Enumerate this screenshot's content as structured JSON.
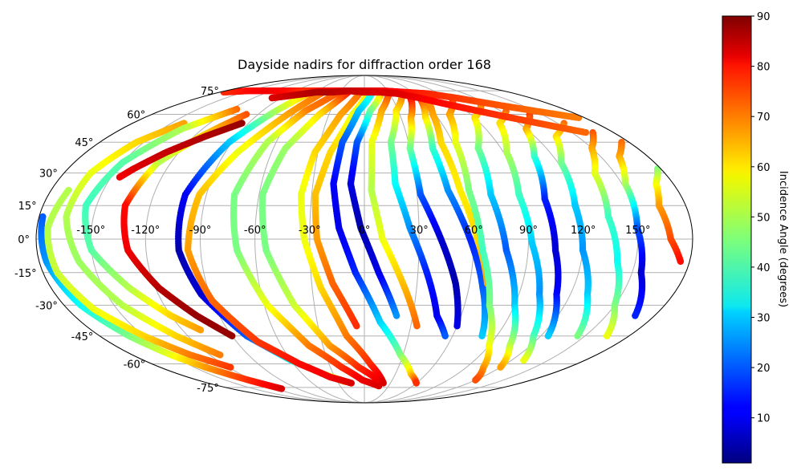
{
  "title": "Dayside nadirs for diffraction order 168",
  "map": {
    "projection": "mollweide",
    "lon_ticks": [
      "-150°",
      "-120°",
      "-90°",
      "-60°",
      "-30°",
      "0°",
      "30°",
      "60°",
      "90°",
      "120°",
      "150°"
    ],
    "lat_ticks": [
      "75°",
      "60°",
      "45°",
      "30°",
      "15°",
      "0°",
      "-15°",
      "-30°",
      "-45°",
      "-60°",
      "-75°"
    ],
    "lon_tick_values": [
      -150,
      -120,
      -90,
      -60,
      -30,
      0,
      30,
      60,
      90,
      120,
      150
    ],
    "lat_tick_values": [
      75,
      60,
      45,
      30,
      15,
      0,
      -15,
      -30,
      -45,
      -60,
      -75
    ],
    "grid": true
  },
  "colorbar": {
    "label": "Incidence Angle (degrees)",
    "colormap": "jet",
    "range": [
      1,
      90
    ],
    "ticks": [
      "10",
      "20",
      "30",
      "40",
      "50",
      "60",
      "70",
      "80",
      "90"
    ],
    "tick_values": [
      10,
      20,
      30,
      40,
      50,
      60,
      70,
      80,
      90
    ]
  },
  "chart_data": {
    "type": "scatter",
    "title": "Dayside nadirs for diffraction order 168",
    "xlabel": "",
    "ylabel": "",
    "color_label": "Incidence Angle (degrees)",
    "color_range": [
      1,
      90
    ],
    "tracks": [
      {
        "lon": [
          -178,
          -176,
          -170,
          -160,
          -150,
          -140,
          -125,
          -112
        ],
        "lat": [
          10,
          -10,
          -30,
          -45,
          -55,
          -62,
          -70,
          -76
        ],
        "inc": [
          20,
          25,
          35,
          45,
          55,
          65,
          75,
          82
        ]
      },
      {
        "lon": [
          -170,
          -174,
          -172,
          -164,
          -150,
          -135,
          -118
        ],
        "lat": [
          22,
          5,
          -15,
          -32,
          -45,
          -55,
          -62
        ],
        "inc": [
          50,
          50,
          52,
          55,
          60,
          68,
          74
        ]
      },
      {
        "lon": [
          -140,
          -155,
          -164,
          -165,
          -158,
          -145,
          -128,
          -112
        ],
        "lat": [
          55,
          45,
          30,
          10,
          -10,
          -30,
          -45,
          -55
        ],
        "inc": [
          65,
          60,
          55,
          50,
          48,
          50,
          60,
          68
        ]
      },
      {
        "lon": [
          -115,
          -135,
          -150,
          -156,
          -150,
          -135,
          -120,
          -108
        ],
        "lat": [
          63,
          52,
          35,
          15,
          -5,
          -22,
          -35,
          -42
        ],
        "inc": [
          70,
          50,
          42,
          40,
          42,
          50,
          60,
          65
        ]
      },
      {
        "lon": [
          -100,
          -115,
          -128,
          -134,
          -130,
          -118,
          -104,
          -90
        ],
        "lat": [
          60,
          48,
          35,
          15,
          -5,
          -22,
          -35,
          -45
        ],
        "inc": [
          72,
          60,
          50,
          78,
          80,
          85,
          88,
          88
        ]
      },
      {
        "lon": [
          -95,
          -112,
          -128,
          -140,
          -145
        ],
        "lat": [
          55,
          48,
          40,
          32,
          28
        ],
        "inc": [
          88,
          86,
          84,
          82,
          80
        ]
      },
      {
        "lon": [
          -65,
          -78,
          -92,
          -102,
          -102,
          -95,
          -80,
          -60,
          -40,
          -22
        ],
        "lat": [
          75,
          62,
          45,
          20,
          -5,
          -25,
          -45,
          -58,
          -66,
          -71
        ],
        "inc": [
          65,
          50,
          30,
          12,
          5,
          8,
          20,
          35,
          50,
          62
        ]
      },
      {
        "lon": [
          -50,
          -65,
          -82,
          -94,
          -97,
          -90,
          -75,
          -55,
          -35,
          -15
        ],
        "lat": [
          75,
          60,
          40,
          20,
          -5,
          -28,
          -48,
          -60,
          -68,
          -72
        ],
        "inc": [
          70,
          65,
          55,
          62,
          65,
          70,
          74,
          78,
          80,
          82
        ]
      },
      {
        "lon": [
          -30,
          -52,
          -66,
          -74,
          -70,
          -58,
          -40,
          -20,
          -2,
          18
        ],
        "lat": [
          75,
          62,
          45,
          20,
          -5,
          -30,
          -50,
          -62,
          -70,
          -74
        ],
        "inc": [
          72,
          68,
          50,
          45,
          45,
          55,
          68,
          75,
          80,
          82
        ]
      },
      {
        "lon": [
          -20,
          -38,
          -52,
          -58,
          -54,
          -42,
          -25,
          -5,
          15
        ],
        "lat": [
          74,
          60,
          42,
          20,
          -5,
          -30,
          -50,
          -62,
          -70
        ],
        "inc": [
          78,
          60,
          48,
          45,
          45,
          52,
          65,
          75,
          80
        ]
      },
      {
        "lon": [
          -5,
          -20,
          -32,
          -36,
          -33,
          -25,
          -12,
          5,
          22
        ],
        "lat": [
          74,
          60,
          40,
          20,
          0,
          -22,
          -45,
          -60,
          -72
        ],
        "inc": [
          70,
          65,
          60,
          55,
          55,
          60,
          68,
          75,
          82
        ]
      },
      {
        "lon": [
          5,
          -10,
          -22,
          -28,
          -26,
          -18,
          -5
        ],
        "lat": [
          74,
          60,
          40,
          20,
          0,
          -20,
          -40
        ],
        "inc": [
          60,
          55,
          60,
          62,
          65,
          70,
          75
        ]
      },
      {
        "lon": [
          10,
          -5,
          -15,
          -18,
          -14,
          -5,
          10,
          28,
          45,
          60
        ],
        "lat": [
          74,
          62,
          45,
          25,
          5,
          -15,
          -38,
          -55,
          -66,
          -72
        ],
        "inc": [
          40,
          30,
          20,
          12,
          10,
          15,
          30,
          45,
          60,
          75
        ]
      },
      {
        "lon": [
          20,
          5,
          -5,
          -8,
          -2,
          8,
          20
        ],
        "lat": [
          73,
          62,
          45,
          25,
          5,
          -15,
          -35
        ],
        "inc": [
          65,
          45,
          20,
          10,
          5,
          10,
          25
        ]
      },
      {
        "lon": [
          30,
          15,
          5,
          4,
          10,
          22,
          34
        ],
        "lat": [
          74,
          62,
          45,
          22,
          0,
          -20,
          -40
        ],
        "inc": [
          75,
          65,
          55,
          50,
          55,
          62,
          70
        ]
      },
      {
        "lon": [
          45,
          28,
          18,
          18,
          25,
          35,
          45,
          55
        ],
        "lat": [
          73,
          62,
          45,
          25,
          5,
          -15,
          -35,
          -45
        ],
        "inc": [
          72,
          60,
          45,
          35,
          25,
          15,
          10,
          20
        ]
      },
      {
        "lon": [
          50,
          38,
          30,
          32,
          42,
          52,
          60
        ],
        "lat": [
          70,
          58,
          42,
          20,
          0,
          -20,
          -40
        ],
        "inc": [
          80,
          65,
          45,
          20,
          8,
          5,
          10
        ]
      },
      {
        "lon": [
          60,
          50,
          45,
          48,
          58,
          68,
          80
        ],
        "lat": [
          70,
          58,
          42,
          22,
          0,
          -22,
          -45
        ],
        "inc": [
          75,
          60,
          40,
          25,
          15,
          20,
          30
        ]
      },
      {
        "lon": [
          68,
          58,
          52,
          55,
          62,
          70
        ],
        "lat": [
          72,
          60,
          45,
          22,
          0,
          -20
        ],
        "inc": [
          70,
          65,
          60,
          58,
          60,
          65
        ]
      },
      {
        "lon": [
          90,
          72,
          62,
          60,
          65,
          75,
          90,
          105,
          120
        ],
        "lat": [
          68,
          60,
          45,
          22,
          -5,
          -30,
          -50,
          -62,
          -70
        ],
        "inc": [
          75,
          65,
          55,
          45,
          40,
          45,
          55,
          65,
          72
        ]
      },
      {
        "lon": [
          110,
          90,
          75,
          72,
          78,
          90,
          105,
          120
        ],
        "lat": [
          65,
          58,
          42,
          20,
          -5,
          -30,
          -50,
          -62
        ],
        "inc": [
          70,
          60,
          45,
          30,
          20,
          30,
          50,
          65
        ]
      },
      {
        "lon": [
          125,
          105,
          92,
          88,
          92,
          102,
          115,
          130
        ],
        "lat": [
          62,
          55,
          40,
          20,
          -2,
          -25,
          -45,
          -58
        ],
        "inc": [
          72,
          60,
          50,
          40,
          30,
          25,
          40,
          55
        ]
      },
      {
        "lon": [
          140,
          120,
          108,
          102,
          105,
          112,
          125
        ],
        "lat": [
          60,
          52,
          38,
          18,
          -5,
          -25,
          -45
        ],
        "inc": [
          75,
          65,
          40,
          15,
          8,
          12,
          30
        ]
      },
      {
        "lon": [
          155,
          135,
          122,
          118,
          120,
          130,
          145
        ],
        "lat": [
          55,
          48,
          35,
          15,
          -5,
          -25,
          -45
        ],
        "inc": [
          70,
          60,
          45,
          30,
          25,
          30,
          45
        ]
      },
      {
        "lon": [
          165,
          150,
          138,
          135,
          140,
          150,
          165
        ],
        "lat": [
          50,
          42,
          30,
          10,
          -10,
          -30,
          -45
        ],
        "inc": [
          72,
          65,
          55,
          40,
          35,
          45,
          55
        ]
      },
      {
        "lon": [
          175,
          162,
          152,
          150,
          155,
          168
        ],
        "lat": [
          45,
          38,
          25,
          5,
          -15,
          -35
        ],
        "inc": [
          70,
          65,
          50,
          20,
          8,
          15
        ]
      },
      {
        "lon": [
          178,
          170,
          165,
          168,
          175
        ],
        "lat": [
          32,
          25,
          15,
          0,
          -10
        ],
        "inc": [
          45,
          55,
          65,
          72,
          78
        ]
      },
      {
        "lon": [
          -175,
          -150,
          -125,
          -100,
          -75,
          -50,
          -25,
          0,
          25,
          50,
          75,
          100,
          125,
          150,
          175
        ],
        "lat": [
          74,
          75,
          75,
          75,
          75,
          75,
          75,
          75,
          75,
          74,
          73,
          70,
          66,
          62,
          58
        ],
        "inc": [
          75,
          78,
          80,
          78,
          75,
          78,
          80,
          82,
          80,
          78,
          76,
          74,
          72,
          70,
          68
        ]
      },
      {
        "lon": [
          -100,
          -80,
          -60,
          -40,
          -20,
          0,
          20,
          40,
          60,
          80,
          100,
          120,
          140,
          160
        ],
        "lat": [
          70,
          72,
          74,
          74,
          75,
          74,
          74,
          73,
          70,
          66,
          62,
          58,
          54,
          50
        ],
        "inc": [
          82,
          84,
          86,
          85,
          84,
          83,
          82,
          82,
          80,
          78,
          76,
          74,
          72,
          70
        ]
      }
    ]
  }
}
